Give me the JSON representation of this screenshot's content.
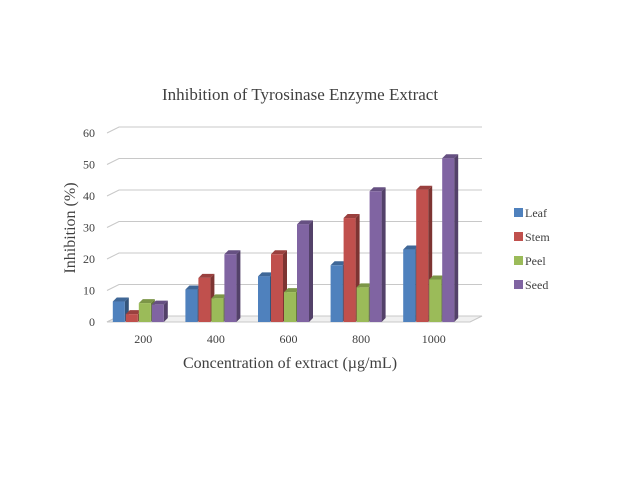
{
  "chart_data": {
    "type": "bar",
    "title": "Inhibition of Tyrosinase Enzyme Extract",
    "xlabel": "Concentration of extract (µg/mL)",
    "ylabel": "Inhibition (%)",
    "categories": [
      "200",
      "400",
      "600",
      "800",
      "1000"
    ],
    "ylim": [
      0,
      60
    ],
    "yticks": [
      "0",
      "10",
      "20",
      "30",
      "40",
      "50",
      "60"
    ],
    "grid": true,
    "legend_position": "right",
    "series": [
      {
        "name": "Leaf",
        "color": "#4f81bd",
        "values": [
          6.5,
          10.3,
          14.5,
          18,
          23
        ]
      },
      {
        "name": "Stem",
        "color": "#c0504d",
        "values": [
          2.5,
          14,
          21.5,
          33,
          42
        ]
      },
      {
        "name": "Peel",
        "color": "#9bbb59",
        "values": [
          6,
          7.5,
          9.5,
          11,
          13.5
        ]
      },
      {
        "name": "Seed",
        "color": "#8064a2",
        "values": [
          5.5,
          21.5,
          31,
          41.5,
          52
        ]
      }
    ]
  }
}
